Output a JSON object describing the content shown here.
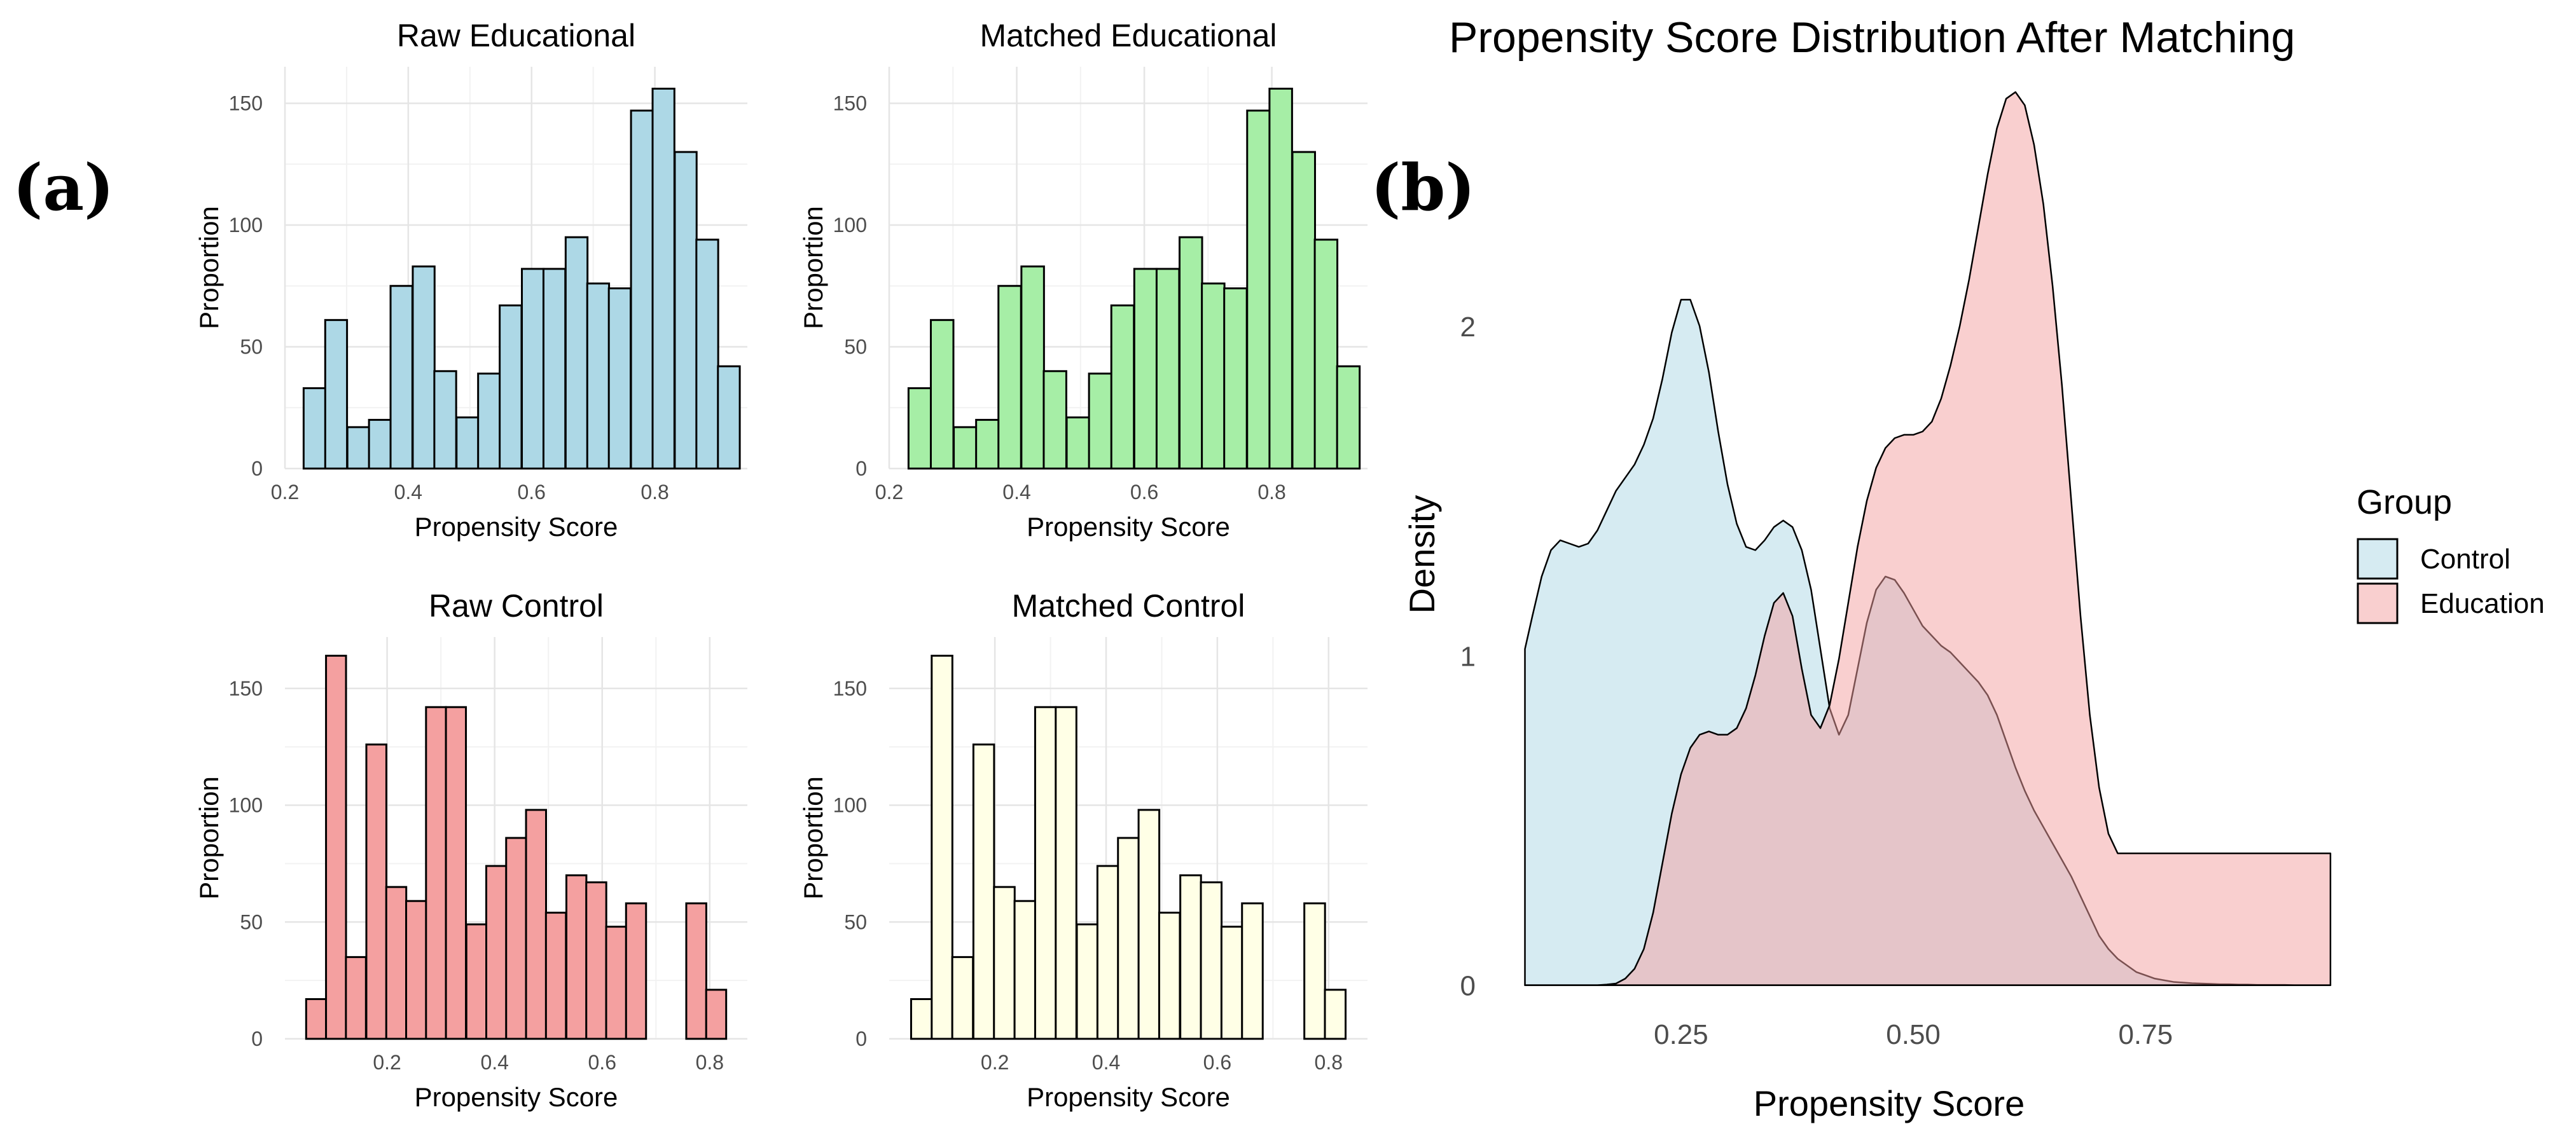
{
  "panel_a_label": "(a)",
  "panel_b_label": "(b)",
  "chart_data": [
    {
      "type": "bar",
      "title": "Raw Educational",
      "xlabel": "Propensity Score",
      "ylabel": "Proportion",
      "color": "#add8e6",
      "xlim": [
        0.2,
        0.95
      ],
      "ylim": [
        0,
        165
      ],
      "xticks": [
        0.2,
        0.4,
        0.6,
        0.8
      ],
      "xtick_labels": [
        "0.2",
        "0.4",
        "0.6",
        "0.8"
      ],
      "yticks": [
        0,
        50,
        100,
        150
      ],
      "ytick_labels": [
        "0",
        "50",
        "100",
        "150"
      ],
      "bin_width": 0.0354,
      "bin_centers": [
        0.248,
        0.283,
        0.319,
        0.354,
        0.389,
        0.425,
        0.46,
        0.496,
        0.531,
        0.566,
        0.602,
        0.637,
        0.673,
        0.708,
        0.743,
        0.779,
        0.814,
        0.85,
        0.885,
        0.92
      ],
      "values": [
        33,
        61,
        17,
        20,
        75,
        83,
        40,
        21,
        39,
        67,
        82,
        82,
        95,
        76,
        74,
        147,
        156,
        130,
        94,
        42
      ]
    },
    {
      "type": "bar",
      "title": "Matched Educational",
      "xlabel": "Propensity Score",
      "ylabel": "Proportion",
      "color": "#a6eea6",
      "xlim": [
        0.2,
        0.95
      ],
      "ylim": [
        0,
        165
      ],
      "xticks": [
        0.2,
        0.4,
        0.6,
        0.8
      ],
      "xtick_labels": [
        "0.2",
        "0.4",
        "0.6",
        "0.8"
      ],
      "yticks": [
        0,
        50,
        100,
        150
      ],
      "ytick_labels": [
        "0",
        "50",
        "100",
        "150"
      ],
      "bin_width": 0.0354,
      "bin_centers": [
        0.248,
        0.283,
        0.319,
        0.354,
        0.389,
        0.425,
        0.46,
        0.496,
        0.531,
        0.566,
        0.602,
        0.637,
        0.673,
        0.708,
        0.743,
        0.779,
        0.814,
        0.85,
        0.885,
        0.92
      ],
      "values": [
        33,
        61,
        17,
        20,
        75,
        83,
        40,
        21,
        39,
        67,
        82,
        82,
        95,
        76,
        74,
        147,
        156,
        130,
        94,
        42
      ]
    },
    {
      "type": "bar",
      "title": "Raw Control",
      "xlabel": "Propensity Score",
      "ylabel": "Proportion",
      "color": "#f4a0a0",
      "xlim": [
        0.01,
        0.87
      ],
      "ylim": [
        0,
        172
      ],
      "xticks": [
        0.2,
        0.4,
        0.6,
        0.8
      ],
      "xtick_labels": [
        "0.2",
        "0.4",
        "0.6",
        "0.8"
      ],
      "yticks": [
        0,
        50,
        100,
        150
      ],
      "ytick_labels": [
        "0",
        "50",
        "100",
        "150"
      ],
      "bin_width": 0.0372,
      "bin_centers": [
        0.068,
        0.105,
        0.142,
        0.18,
        0.217,
        0.254,
        0.291,
        0.328,
        0.366,
        0.403,
        0.44,
        0.477,
        0.514,
        0.552,
        0.589,
        0.626,
        0.663,
        0.7,
        0.738,
        0.775,
        0.812,
        0.849
      ],
      "values": [
        17,
        164,
        35,
        126,
        65,
        59,
        142,
        142,
        49,
        74,
        86,
        98,
        54,
        70,
        67,
        48,
        58,
        0,
        0,
        58,
        21,
        0
      ]
    },
    {
      "type": "bar",
      "title": "Matched Control",
      "xlabel": "Propensity Score",
      "ylabel": "Proportion",
      "color": "#ffffe6",
      "xlim": [
        0.01,
        0.87
      ],
      "ylim": [
        0,
        172
      ],
      "xticks": [
        0.2,
        0.4,
        0.6,
        0.8
      ],
      "xtick_labels": [
        "0.2",
        "0.4",
        "0.6",
        "0.8"
      ],
      "yticks": [
        0,
        50,
        100,
        150
      ],
      "ytick_labels": [
        "0",
        "50",
        "100",
        "150"
      ],
      "bin_width": 0.0372,
      "bin_centers": [
        0.068,
        0.105,
        0.142,
        0.18,
        0.217,
        0.254,
        0.291,
        0.328,
        0.366,
        0.403,
        0.44,
        0.477,
        0.514,
        0.552,
        0.589,
        0.626,
        0.663,
        0.7,
        0.738,
        0.775,
        0.812,
        0.849
      ],
      "values": [
        17,
        164,
        35,
        126,
        65,
        59,
        142,
        142,
        49,
        74,
        86,
        98,
        54,
        70,
        67,
        48,
        58,
        0,
        0,
        58,
        21,
        0
      ]
    },
    {
      "type": "area",
      "title": "Propensity Score Distribution After Matching",
      "xlabel": "Propensity Score",
      "ylabel": "Density",
      "xlim": [
        0.07,
        0.96
      ],
      "ylim": [
        -0.02,
        2.7
      ],
      "xticks": [
        0.25,
        0.5,
        0.75
      ],
      "xtick_labels": [
        "0.25",
        "0.50",
        "0.75"
      ],
      "yticks": [
        0,
        1,
        2
      ],
      "ytick_labels": [
        "0",
        "1",
        "2"
      ],
      "legend_title": "Group",
      "legend_position": "right",
      "series": [
        {
          "name": "Control",
          "color": "#add8e6",
          "x": [
            0.082,
            0.09,
            0.1,
            0.11,
            0.12,
            0.13,
            0.14,
            0.15,
            0.16,
            0.17,
            0.18,
            0.19,
            0.2,
            0.21,
            0.22,
            0.23,
            0.24,
            0.25,
            0.26,
            0.27,
            0.28,
            0.29,
            0.3,
            0.31,
            0.32,
            0.33,
            0.34,
            0.35,
            0.36,
            0.37,
            0.38,
            0.39,
            0.4,
            0.41,
            0.42,
            0.43,
            0.44,
            0.45,
            0.46,
            0.47,
            0.48,
            0.49,
            0.5,
            0.51,
            0.52,
            0.53,
            0.54,
            0.55,
            0.56,
            0.57,
            0.58,
            0.59,
            0.6,
            0.61,
            0.62,
            0.63,
            0.64,
            0.65,
            0.66,
            0.67,
            0.68,
            0.69,
            0.7,
            0.71,
            0.72,
            0.73,
            0.74,
            0.75,
            0.76,
            0.77,
            0.78,
            0.79,
            0.8,
            0.81,
            0.82,
            0.83,
            0.84,
            0.85,
            0.86,
            0.87,
            0.88,
            0.89,
            0.9,
            0.91,
            0.92,
            0.93,
            0.94,
            0.949
          ],
          "values": [
            1.02,
            1.12,
            1.24,
            1.32,
            1.35,
            1.34,
            1.33,
            1.34,
            1.38,
            1.44,
            1.5,
            1.54,
            1.58,
            1.64,
            1.72,
            1.84,
            1.98,
            2.08,
            2.08,
            2.0,
            1.86,
            1.68,
            1.52,
            1.4,
            1.33,
            1.32,
            1.35,
            1.39,
            1.41,
            1.39,
            1.32,
            1.2,
            1.02,
            0.84,
            0.76,
            0.82,
            0.96,
            1.1,
            1.2,
            1.24,
            1.23,
            1.19,
            1.14,
            1.09,
            1.06,
            1.03,
            1.01,
            0.98,
            0.95,
            0.92,
            0.88,
            0.82,
            0.74,
            0.66,
            0.59,
            0.53,
            0.48,
            0.43,
            0.38,
            0.33,
            0.27,
            0.21,
            0.15,
            0.11,
            0.08,
            0.06,
            0.04,
            0.03,
            0.02,
            0.015,
            0.01,
            0.008,
            0.006,
            0.005,
            0.004,
            0.003,
            0.003,
            0.002,
            0.002,
            0.001,
            0.001,
            0.001,
            0.001,
            0.0,
            0.0,
            0.0,
            0.0,
            0.0
          ]
        },
        {
          "name": "Education",
          "color": "#f4a0a0",
          "x": [
            0.082,
            0.09,
            0.1,
            0.11,
            0.12,
            0.13,
            0.14,
            0.15,
            0.16,
            0.17,
            0.18,
            0.19,
            0.2,
            0.21,
            0.22,
            0.23,
            0.24,
            0.25,
            0.26,
            0.27,
            0.28,
            0.29,
            0.3,
            0.31,
            0.32,
            0.33,
            0.34,
            0.35,
            0.36,
            0.37,
            0.38,
            0.39,
            0.4,
            0.41,
            0.42,
            0.43,
            0.44,
            0.45,
            0.46,
            0.47,
            0.48,
            0.49,
            0.5,
            0.51,
            0.52,
            0.53,
            0.54,
            0.55,
            0.56,
            0.57,
            0.58,
            0.59,
            0.6,
            0.61,
            0.62,
            0.63,
            0.64,
            0.65,
            0.66,
            0.67,
            0.68,
            0.69,
            0.7,
            0.71,
            0.72,
            0.73,
            0.74,
            0.75,
            0.76,
            0.77,
            0.78,
            0.79,
            0.8,
            0.81,
            0.82,
            0.83,
            0.84,
            0.85,
            0.86,
            0.87,
            0.88,
            0.89,
            0.9,
            0.91,
            0.92,
            0.93,
            0.94,
            0.949
          ],
          "values": [
            0.0,
            0.0,
            0.0,
            0.0,
            0.0,
            0.0,
            0.0,
            0.0,
            0.0,
            0.002,
            0.005,
            0.02,
            0.05,
            0.11,
            0.22,
            0.37,
            0.52,
            0.64,
            0.72,
            0.76,
            0.77,
            0.76,
            0.76,
            0.78,
            0.84,
            0.94,
            1.06,
            1.16,
            1.19,
            1.12,
            0.96,
            0.82,
            0.78,
            0.85,
            0.99,
            1.16,
            1.33,
            1.47,
            1.57,
            1.63,
            1.66,
            1.67,
            1.67,
            1.68,
            1.71,
            1.78,
            1.88,
            2.0,
            2.14,
            2.3,
            2.46,
            2.6,
            2.69,
            2.71,
            2.67,
            2.55,
            2.37,
            2.12,
            1.82,
            1.47,
            1.12,
            0.82,
            0.6,
            0.46,
            0.4,
            0.4,
            0.4,
            0.4,
            0.4,
            0.4,
            0.4,
            0.4,
            0.4,
            0.4,
            0.4,
            0.4,
            0.4,
            0.4,
            0.4,
            0.4,
            0.4,
            0.4,
            0.4,
            0.4,
            0.4,
            0.4,
            0.4,
            0.4
          ]
        }
      ]
    }
  ]
}
